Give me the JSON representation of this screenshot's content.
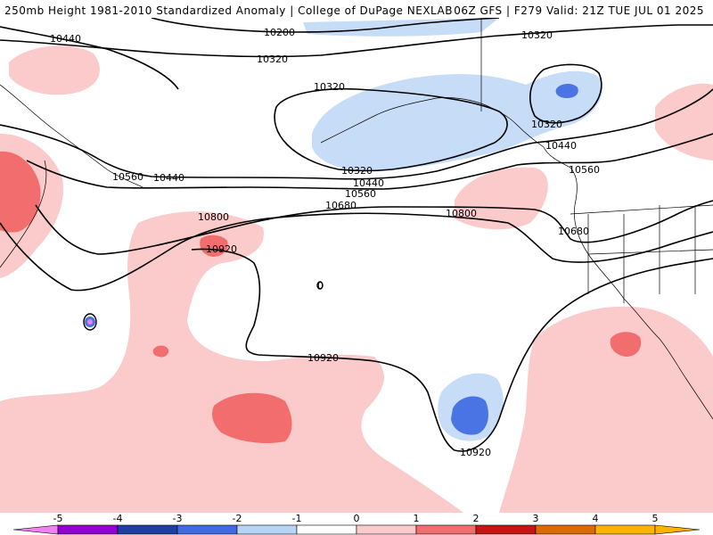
{
  "header": {
    "left_title": "250mb Height 1981-2010 Standardized Anomaly | College of DuPage NEXLAB",
    "right_title": "06Z GFS | F279 Valid: 21Z TUE JUL 01 2025"
  },
  "colors": {
    "neg5": "#ee82ee",
    "neg4": "#9400d3",
    "neg3": "#1e3fa0",
    "neg2": "#4169e1",
    "neg1": "#b7d4f7",
    "zero": "#ffffff",
    "pos1": "#fbcaca",
    "pos2": "#f26d6d",
    "pos3": "#c91414",
    "pos4": "#d96b00",
    "pos5": "#ffb300"
  },
  "colorbar": {
    "ticks": [
      "-5",
      "-4",
      "-3",
      "-2",
      "-1",
      "0",
      "1",
      "2",
      "3",
      "4",
      "5"
    ]
  },
  "contour_labels": {
    "l10200": "10200",
    "l10320a": "10320",
    "l10320b": "10320",
    "l10320c": "10320",
    "l10320d": "10320",
    "l10320e": "10320",
    "l10440a": "10440",
    "l10440b": "10440",
    "l10440c": "10440",
    "l10440d": "10440",
    "l10560a": "10560",
    "l10560b": "10560",
    "l10560c": "10560",
    "l10680a": "10680",
    "l10680b": "10680",
    "l10800a": "10800",
    "l10800b": "10800",
    "l10920a": "10920",
    "l10920b": "10920",
    "l10920c": "10920",
    "l0": "0"
  }
}
